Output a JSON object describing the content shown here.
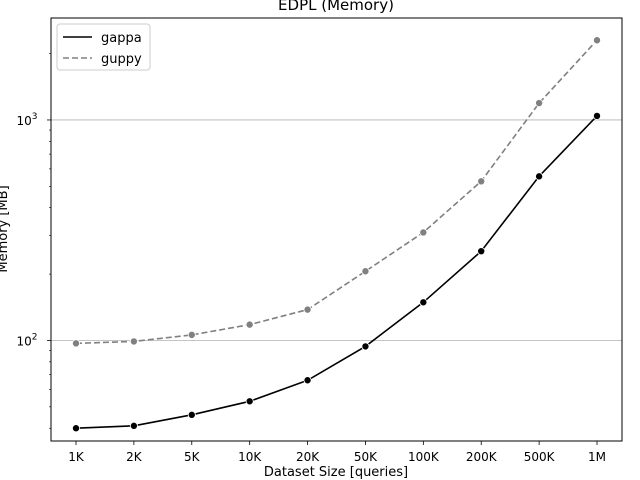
{
  "chart_data": {
    "type": "line",
    "title": "EDPL  (Memory)",
    "xlabel": "Dataset Size  [queries]",
    "ylabel": "Memory  [MB]",
    "yscale": "log",
    "ylim": [
      35,
      2900
    ],
    "grid": "y-major",
    "legend_position": "top-left",
    "categories": [
      "1K",
      "2K",
      "5K",
      "10K",
      "20K",
      "50K",
      "100K",
      "200K",
      "500K",
      "1M"
    ],
    "yticks": [
      {
        "value": 100,
        "base": "10",
        "exp": "2"
      },
      {
        "value": 1000,
        "base": "10",
        "exp": "3"
      }
    ],
    "series": [
      {
        "name": "gappa",
        "color": "#000000",
        "dash": "solid",
        "values": [
          40,
          41,
          46,
          53,
          66,
          94,
          149,
          254,
          555,
          1043
        ]
      },
      {
        "name": "guppy",
        "color": "#808080",
        "dash": "dashed",
        "values": [
          97,
          99,
          106,
          118,
          138,
          206,
          309,
          527,
          1193,
          2299
        ]
      }
    ]
  }
}
